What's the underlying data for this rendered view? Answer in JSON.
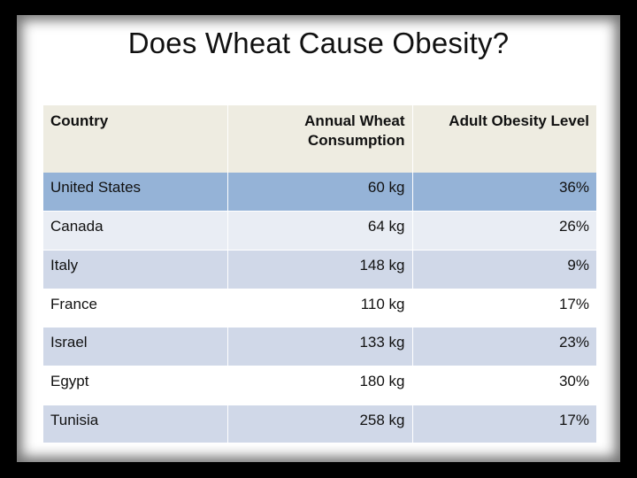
{
  "slide": {
    "title": "Does Wheat Cause Obesity?"
  },
  "table": {
    "headers": [
      "Country",
      "Annual Wheat Consumption",
      "Adult Obesity Level"
    ],
    "header_line1": "Annual Wheat",
    "header_line2": "Consumption",
    "rows": [
      {
        "country": "United States",
        "wheat": "60 kg",
        "obesity": "36%"
      },
      {
        "country": "Canada",
        "wheat": "64 kg",
        "obesity": "26%"
      },
      {
        "country": "Italy",
        "wheat": "148 kg",
        "obesity": "9%"
      },
      {
        "country": "France",
        "wheat": "110 kg",
        "obesity": "17%"
      },
      {
        "country": "Israel",
        "wheat": "133 kg",
        "obesity": "23%"
      },
      {
        "country": "Egypt",
        "wheat": "180 kg",
        "obesity": "30%"
      },
      {
        "country": "Tunisia",
        "wheat": "258 kg",
        "obesity": "17%"
      }
    ]
  },
  "colors": {
    "header_bg": "#eeece1",
    "highlight_row": "#95b3d7",
    "band_row": "#d0d8e8",
    "light_row": "#e9edf4"
  }
}
